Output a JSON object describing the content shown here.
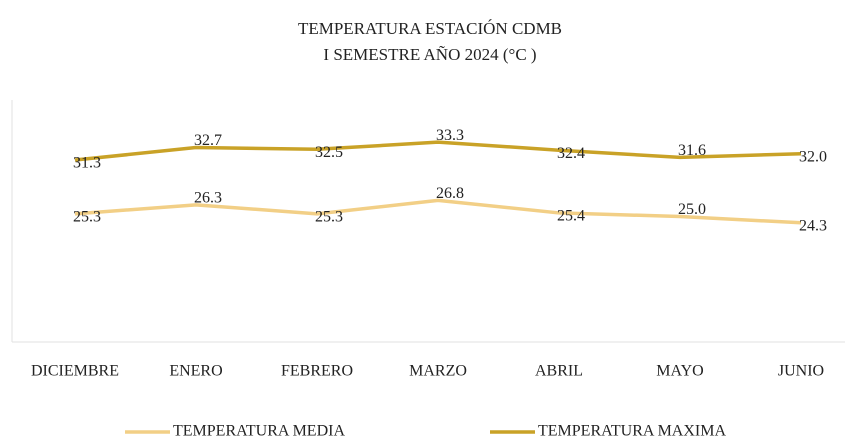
{
  "chart_data": {
    "type": "line",
    "title": "TEMPERATURA ESTACIÓN CDMB",
    "subtitle": "I SEMESTRE AÑO 2024 (°C )",
    "categories": [
      "DICIEMBRE",
      "ENERO",
      "FEBRERO",
      "MARZO",
      "ABRIL",
      "MAYO",
      "JUNIO"
    ],
    "series": [
      {
        "name": "TEMPERATURA MEDIA",
        "color": "#f2cf86",
        "values": [
          25.3,
          26.3,
          25.3,
          26.8,
          25.4,
          25,
          24.3
        ],
        "value_labels": [
          "25.3",
          "26.3",
          "25.3",
          "26.8",
          "25.4",
          "25.0",
          "24.3"
        ]
      },
      {
        "name": "TEMPERATURA MAXIMA",
        "color": "#c9a227",
        "values": [
          31.3,
          32.7,
          32.5,
          33.3,
          32.4,
          31.6,
          32
        ],
        "value_labels": [
          "31.3",
          "32.7",
          "32.5",
          "33.3",
          "32.4",
          "31.6",
          "32.0"
        ]
      }
    ],
    "ylim": [
      11,
      38
    ],
    "legend": "bottom"
  }
}
